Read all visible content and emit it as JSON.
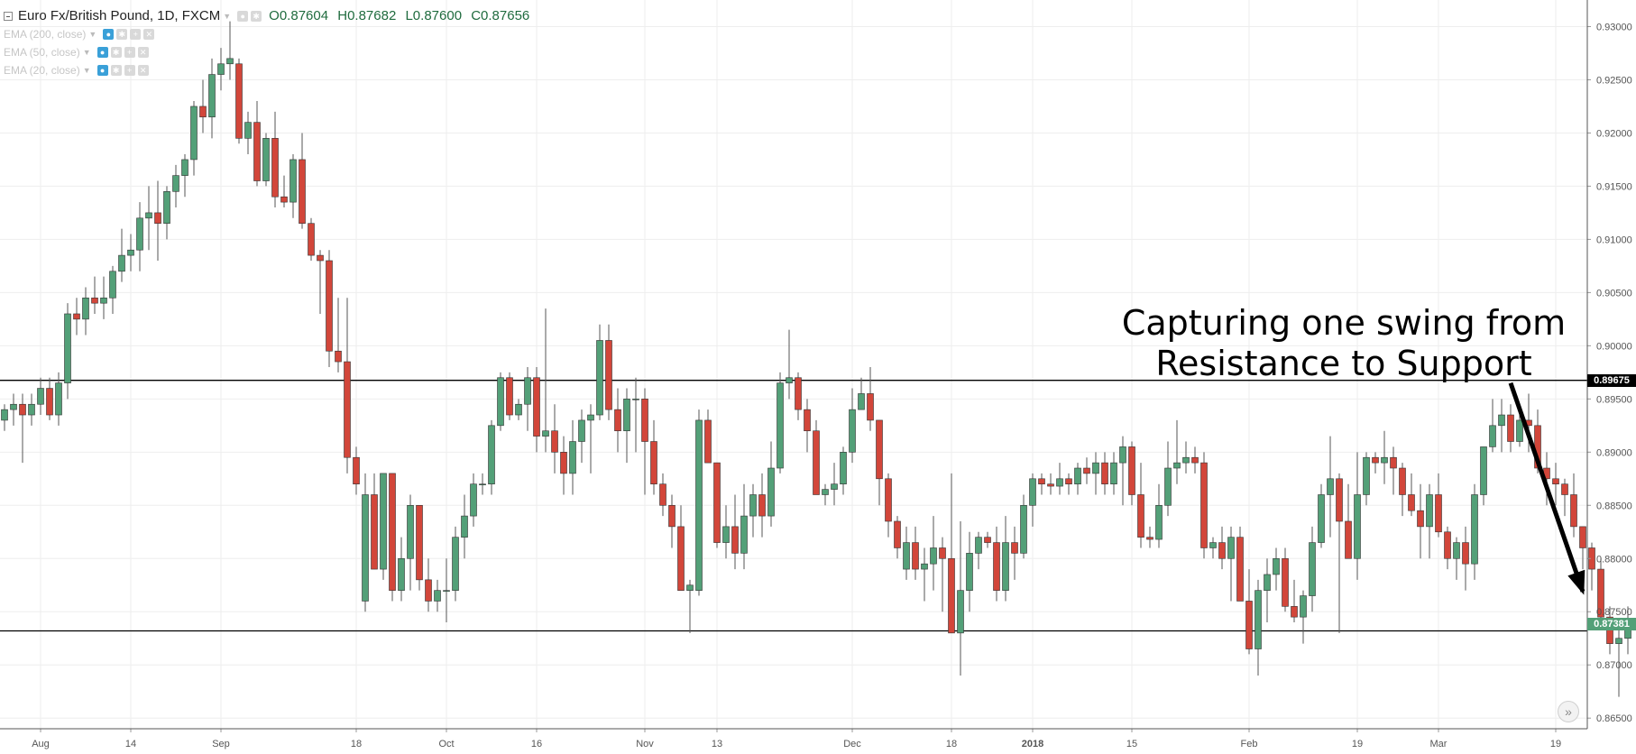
{
  "legend": {
    "symbol_title": "Euro Fx/British Pound, 1D, FXCM",
    "open": "O0.87604",
    "high": "H0.87682",
    "low": "L0.87600",
    "close": "C0.87656",
    "indicators": [
      "EMA (200, close)",
      "EMA (50, close)",
      "EMA (20, close)"
    ]
  },
  "annotation": {
    "line1": "Capturing one swing from",
    "line2": "Resistance to Support"
  },
  "colors": {
    "up": "#53a078",
    "down": "#d2463a",
    "grid": "#eeeeee",
    "axis": "#555555",
    "resistance_tag": "#000000",
    "last_price_tag": "#53a078"
  },
  "icons": [
    "collapse-icon",
    "eye-icon",
    "gear-icon",
    "plus-icon",
    "close-icon",
    "chevron-right-double-icon"
  ],
  "chart_data": {
    "type": "candlestick",
    "timeframe": "1D",
    "ylim": [
      0.864,
      0.9325
    ],
    "y_ticks": [
      "0.93000",
      "0.92500",
      "0.92000",
      "0.91500",
      "0.91000",
      "0.90500",
      "0.90000",
      "0.89500",
      "0.89000",
      "0.88500",
      "0.88000",
      "0.87500",
      "0.87000",
      "0.86500"
    ],
    "x_ticks": [
      {
        "index": 4,
        "label": "Aug"
      },
      {
        "index": 14,
        "label": "14"
      },
      {
        "index": 24,
        "label": "Sep"
      },
      {
        "index": 39,
        "label": "18"
      },
      {
        "index": 49,
        "label": "Oct"
      },
      {
        "index": 59,
        "label": "16"
      },
      {
        "index": 71,
        "label": "Nov"
      },
      {
        "index": 79,
        "label": "13"
      },
      {
        "index": 94,
        "label": "Dec"
      },
      {
        "index": 105,
        "label": "18"
      },
      {
        "index": 114,
        "label": "2018"
      },
      {
        "index": 125,
        "label": "15"
      },
      {
        "index": 138,
        "label": "Feb"
      },
      {
        "index": 150,
        "label": "19"
      },
      {
        "index": 159,
        "label": "Mar"
      },
      {
        "index": 172,
        "label": "19"
      }
    ],
    "horizontal_lines": [
      {
        "value": 0.89675,
        "label": "0.89675",
        "name": "resistance"
      },
      {
        "value": 0.8732,
        "label": "",
        "name": "support"
      }
    ],
    "last_price": {
      "value": 0.87381,
      "label": "0.87381"
    },
    "annotation_arrow": {
      "from_index": 167,
      "from_value": 0.8965,
      "to_index": 175,
      "to_value": 0.8769
    },
    "candles": [
      [
        0.893,
        0.8945,
        0.892,
        0.894
      ],
      [
        0.894,
        0.8955,
        0.8925,
        0.8945
      ],
      [
        0.8945,
        0.8955,
        0.889,
        0.8935
      ],
      [
        0.8935,
        0.8955,
        0.8925,
        0.8945
      ],
      [
        0.8945,
        0.897,
        0.8935,
        0.896
      ],
      [
        0.896,
        0.897,
        0.893,
        0.8935
      ],
      [
        0.8935,
        0.8975,
        0.8925,
        0.8965
      ],
      [
        0.8965,
        0.904,
        0.895,
        0.903
      ],
      [
        0.903,
        0.9045,
        0.901,
        0.9025
      ],
      [
        0.9025,
        0.9055,
        0.901,
        0.9045
      ],
      [
        0.9045,
        0.9065,
        0.903,
        0.904
      ],
      [
        0.904,
        0.9065,
        0.9025,
        0.9045
      ],
      [
        0.9045,
        0.9075,
        0.903,
        0.907
      ],
      [
        0.907,
        0.911,
        0.906,
        0.9085
      ],
      [
        0.9085,
        0.9105,
        0.907,
        0.909
      ],
      [
        0.909,
        0.9135,
        0.907,
        0.912
      ],
      [
        0.912,
        0.915,
        0.909,
        0.9125
      ],
      [
        0.9125,
        0.9155,
        0.908,
        0.9115
      ],
      [
        0.9115,
        0.915,
        0.91,
        0.9145
      ],
      [
        0.9145,
        0.917,
        0.913,
        0.916
      ],
      [
        0.916,
        0.918,
        0.914,
        0.9175
      ],
      [
        0.9175,
        0.923,
        0.916,
        0.9225
      ],
      [
        0.9225,
        0.925,
        0.92,
        0.9215
      ],
      [
        0.9215,
        0.927,
        0.9195,
        0.9255
      ],
      [
        0.9255,
        0.928,
        0.924,
        0.9265
      ],
      [
        0.9265,
        0.9305,
        0.925,
        0.927
      ],
      [
        0.9265,
        0.927,
        0.919,
        0.9195
      ],
      [
        0.9195,
        0.922,
        0.918,
        0.921
      ],
      [
        0.921,
        0.923,
        0.915,
        0.9155
      ],
      [
        0.9155,
        0.92,
        0.915,
        0.9195
      ],
      [
        0.9195,
        0.922,
        0.913,
        0.914
      ],
      [
        0.914,
        0.916,
        0.913,
        0.9135
      ],
      [
        0.9135,
        0.918,
        0.912,
        0.9175
      ],
      [
        0.9175,
        0.92,
        0.911,
        0.9115
      ],
      [
        0.9115,
        0.912,
        0.908,
        0.9085
      ],
      [
        0.9085,
        0.909,
        0.903,
        0.908
      ],
      [
        0.908,
        0.909,
        0.898,
        0.8995
      ],
      [
        0.8995,
        0.9045,
        0.8975,
        0.8985
      ],
      [
        0.8985,
        0.9045,
        0.888,
        0.8895
      ],
      [
        0.8895,
        0.8905,
        0.886,
        0.887
      ],
      [
        0.876,
        0.888,
        0.875,
        0.886
      ],
      [
        0.886,
        0.888,
        0.879,
        0.879
      ],
      [
        0.879,
        0.888,
        0.878,
        0.888
      ],
      [
        0.888,
        0.888,
        0.876,
        0.877
      ],
      [
        0.877,
        0.882,
        0.876,
        0.88
      ],
      [
        0.88,
        0.886,
        0.877,
        0.885
      ],
      [
        0.885,
        0.885,
        0.877,
        0.878
      ],
      [
        0.878,
        0.88,
        0.875,
        0.876
      ],
      [
        0.876,
        0.878,
        0.875,
        0.877
      ],
      [
        0.877,
        0.88,
        0.874,
        0.877
      ],
      [
        0.877,
        0.883,
        0.876,
        0.882
      ],
      [
        0.882,
        0.886,
        0.88,
        0.884
      ],
      [
        0.884,
        0.888,
        0.883,
        0.887
      ],
      [
        0.887,
        0.888,
        0.886,
        0.887
      ],
      [
        0.887,
        0.893,
        0.886,
        0.8925
      ],
      [
        0.8925,
        0.8975,
        0.892,
        0.897
      ],
      [
        0.897,
        0.8975,
        0.893,
        0.8935
      ],
      [
        0.8935,
        0.895,
        0.893,
        0.8945
      ],
      [
        0.8945,
        0.898,
        0.892,
        0.897
      ],
      [
        0.897,
        0.898,
        0.89,
        0.8915
      ],
      [
        0.8915,
        0.9035,
        0.89,
        0.892
      ],
      [
        0.892,
        0.8945,
        0.888,
        0.89
      ],
      [
        0.89,
        0.8915,
        0.886,
        0.888
      ],
      [
        0.888,
        0.893,
        0.886,
        0.891
      ],
      [
        0.891,
        0.894,
        0.889,
        0.893
      ],
      [
        0.893,
        0.8945,
        0.888,
        0.8935
      ],
      [
        0.8935,
        0.902,
        0.893,
        0.9005
      ],
      [
        0.9005,
        0.902,
        0.893,
        0.894
      ],
      [
        0.894,
        0.896,
        0.89,
        0.892
      ],
      [
        0.892,
        0.896,
        0.889,
        0.895
      ],
      [
        0.895,
        0.897,
        0.89,
        0.895
      ],
      [
        0.895,
        0.896,
        0.886,
        0.891
      ],
      [
        0.891,
        0.893,
        0.886,
        0.887
      ],
      [
        0.887,
        0.888,
        0.884,
        0.885
      ],
      [
        0.885,
        0.886,
        0.881,
        0.883
      ],
      [
        0.883,
        0.885,
        0.877,
        0.877
      ],
      [
        0.877,
        0.878,
        0.873,
        0.8775
      ],
      [
        0.877,
        0.894,
        0.8765,
        0.893
      ],
      [
        0.893,
        0.894,
        0.889,
        0.889
      ],
      [
        0.889,
        0.889,
        0.881,
        0.8815
      ],
      [
        0.8815,
        0.885,
        0.88,
        0.883
      ],
      [
        0.883,
        0.886,
        0.879,
        0.8805
      ],
      [
        0.8805,
        0.887,
        0.879,
        0.884
      ],
      [
        0.884,
        0.887,
        0.882,
        0.886
      ],
      [
        0.886,
        0.888,
        0.882,
        0.884
      ],
      [
        0.884,
        0.891,
        0.883,
        0.8885
      ],
      [
        0.8885,
        0.8975,
        0.888,
        0.8965
      ],
      [
        0.8965,
        0.9015,
        0.895,
        0.897
      ],
      [
        0.897,
        0.8975,
        0.893,
        0.894
      ],
      [
        0.894,
        0.895,
        0.89,
        0.892
      ],
      [
        0.892,
        0.893,
        0.886,
        0.886
      ],
      [
        0.886,
        0.887,
        0.885,
        0.8865
      ],
      [
        0.8865,
        0.889,
        0.885,
        0.887
      ],
      [
        0.887,
        0.8905,
        0.886,
        0.89
      ],
      [
        0.89,
        0.896,
        0.889,
        0.894
      ],
      [
        0.894,
        0.897,
        0.894,
        0.8955
      ],
      [
        0.8955,
        0.898,
        0.892,
        0.893
      ],
      [
        0.893,
        0.893,
        0.885,
        0.8875
      ],
      [
        0.8875,
        0.888,
        0.882,
        0.8835
      ],
      [
        0.8835,
        0.884,
        0.88,
        0.881
      ],
      [
        0.879,
        0.883,
        0.878,
        0.8815
      ],
      [
        0.8815,
        0.883,
        0.878,
        0.879
      ],
      [
        0.879,
        0.881,
        0.876,
        0.8795
      ],
      [
        0.8795,
        0.884,
        0.877,
        0.881
      ],
      [
        0.881,
        0.882,
        0.875,
        0.88
      ],
      [
        0.88,
        0.888,
        0.873,
        0.873
      ],
      [
        0.873,
        0.8835,
        0.869,
        0.877
      ],
      [
        0.877,
        0.8825,
        0.875,
        0.8805
      ],
      [
        0.8805,
        0.8825,
        0.879,
        0.882
      ],
      [
        0.882,
        0.8825,
        0.881,
        0.8815
      ],
      [
        0.8815,
        0.883,
        0.876,
        0.877
      ],
      [
        0.877,
        0.884,
        0.876,
        0.8815
      ],
      [
        0.8815,
        0.883,
        0.878,
        0.8805
      ],
      [
        0.8805,
        0.886,
        0.88,
        0.885
      ],
      [
        0.885,
        0.888,
        0.883,
        0.8875
      ],
      [
        0.8875,
        0.888,
        0.886,
        0.887
      ],
      [
        0.887,
        0.888,
        0.886,
        0.8868
      ],
      [
        0.8868,
        0.889,
        0.886,
        0.8875
      ],
      [
        0.8875,
        0.888,
        0.886,
        0.887
      ],
      [
        0.887,
        0.889,
        0.886,
        0.8885
      ],
      [
        0.8885,
        0.8895,
        0.887,
        0.888
      ],
      [
        0.888,
        0.89,
        0.886,
        0.889
      ],
      [
        0.889,
        0.89,
        0.886,
        0.887
      ],
      [
        0.887,
        0.89,
        0.886,
        0.889
      ],
      [
        0.889,
        0.8915,
        0.885,
        0.8905
      ],
      [
        0.8905,
        0.891,
        0.885,
        0.886
      ],
      [
        0.886,
        0.889,
        0.881,
        0.882
      ],
      [
        0.882,
        0.883,
        0.881,
        0.8818
      ],
      [
        0.8818,
        0.887,
        0.881,
        0.885
      ],
      [
        0.885,
        0.891,
        0.884,
        0.8885
      ],
      [
        0.8885,
        0.893,
        0.887,
        0.889
      ],
      [
        0.889,
        0.891,
        0.888,
        0.8895
      ],
      [
        0.8895,
        0.8905,
        0.888,
        0.889
      ],
      [
        0.889,
        0.89,
        0.88,
        0.881
      ],
      [
        0.881,
        0.882,
        0.88,
        0.8815
      ],
      [
        0.8815,
        0.883,
        0.879,
        0.88
      ],
      [
        0.88,
        0.883,
        0.876,
        0.882
      ],
      [
        0.882,
        0.883,
        0.876,
        0.876
      ],
      [
        0.876,
        0.879,
        0.871,
        0.8715
      ],
      [
        0.8715,
        0.878,
        0.869,
        0.877
      ],
      [
        0.877,
        0.88,
        0.874,
        0.8785
      ],
      [
        0.8785,
        0.881,
        0.877,
        0.88
      ],
      [
        0.88,
        0.881,
        0.875,
        0.8755
      ],
      [
        0.8755,
        0.878,
        0.874,
        0.8745
      ],
      [
        0.8745,
        0.877,
        0.872,
        0.8765
      ],
      [
        0.8765,
        0.883,
        0.875,
        0.8815
      ],
      [
        0.8815,
        0.887,
        0.881,
        0.886
      ],
      [
        0.886,
        0.8915,
        0.882,
        0.8875
      ],
      [
        0.8875,
        0.888,
        0.873,
        0.8835
      ],
      [
        0.8835,
        0.887,
        0.88,
        0.88
      ],
      [
        0.88,
        0.89,
        0.878,
        0.886
      ],
      [
        0.886,
        0.89,
        0.885,
        0.8895
      ],
      [
        0.8895,
        0.89,
        0.888,
        0.889
      ],
      [
        0.889,
        0.892,
        0.887,
        0.8895
      ],
      [
        0.8895,
        0.8905,
        0.886,
        0.8885
      ],
      [
        0.8885,
        0.889,
        0.884,
        0.886
      ],
      [
        0.886,
        0.888,
        0.884,
        0.8845
      ],
      [
        0.8845,
        0.887,
        0.88,
        0.883
      ],
      [
        0.883,
        0.887,
        0.88,
        0.886
      ],
      [
        0.886,
        0.888,
        0.882,
        0.8825
      ],
      [
        0.8825,
        0.883,
        0.879,
        0.88
      ],
      [
        0.88,
        0.882,
        0.878,
        0.8815
      ],
      [
        0.8815,
        0.883,
        0.877,
        0.8795
      ],
      [
        0.8795,
        0.887,
        0.878,
        0.886
      ],
      [
        0.886,
        0.8905,
        0.885,
        0.8905
      ],
      [
        0.8905,
        0.895,
        0.89,
        0.8925
      ],
      [
        0.8925,
        0.895,
        0.89,
        0.8935
      ],
      [
        0.8935,
        0.8945,
        0.89,
        0.891
      ],
      [
        0.891,
        0.894,
        0.8905,
        0.893
      ],
      [
        0.893,
        0.8955,
        0.89,
        0.8925
      ],
      [
        0.8925,
        0.894,
        0.888,
        0.8885
      ],
      [
        0.8885,
        0.89,
        0.885,
        0.8875
      ],
      [
        0.8875,
        0.889,
        0.885,
        0.887
      ],
      [
        0.887,
        0.8875,
        0.884,
        0.886
      ],
      [
        0.886,
        0.888,
        0.882,
        0.883
      ],
      [
        0.883,
        0.883,
        0.879,
        0.881
      ],
      [
        0.881,
        0.8815,
        0.877,
        0.879
      ],
      [
        0.879,
        0.88,
        0.874,
        0.8745
      ],
      [
        0.8745,
        0.8755,
        0.871,
        0.872
      ],
      [
        0.872,
        0.874,
        0.867,
        0.8725
      ],
      [
        0.8725,
        0.8755,
        0.871,
        0.8738
      ]
    ]
  }
}
